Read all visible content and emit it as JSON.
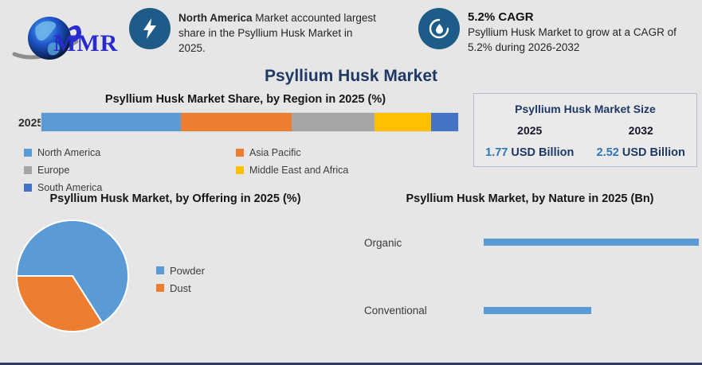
{
  "page": {
    "title": "Psyllium Husk Market",
    "background": "#E7E6E6",
    "accent_navy": "#1F3864",
    "accent_blue": "#2E75B6",
    "icon_circle_color": "#1D5C88"
  },
  "logo": {
    "text": "MMR",
    "icon": "globe-with-swoosh",
    "text_color": "#2A2BCF"
  },
  "highlights": [
    {
      "icon": "lightning-icon",
      "bold": "North America",
      "rest": "Market accounted largest share in the Psyllium Husk Market in 2025."
    },
    {
      "icon": "droplet-icon",
      "title": "5.2% CAGR",
      "text": "Psyllium Husk Market to grow at a CAGR of 5.2% during 2026-2032"
    }
  ],
  "market_size": {
    "title": "Psyllium Husk Market Size",
    "columns": [
      {
        "year": "2025",
        "value": "1.77",
        "unit": "USD Billion"
      },
      {
        "year": "2032",
        "value": "2.52",
        "unit": "USD Billion"
      }
    ]
  },
  "chart_data": [
    {
      "type": "bar",
      "subtype": "horizontal-stacked",
      "title": "Psyllium Husk Market Share, by Region in 2025 (%)",
      "year_label": "2025",
      "categories": [
        "North America",
        "Asia Pacific",
        "Europe",
        "Middle East and Africa",
        "South America"
      ],
      "values": [
        33.5,
        26.5,
        20,
        13.5,
        6.5
      ],
      "colors": [
        "#5B9BD5",
        "#ED7D31",
        "#A5A5A5",
        "#FFC000",
        "#4472C4"
      ],
      "unit": "%",
      "legend_position": "bottom",
      "grid": false
    },
    {
      "type": "pie",
      "title": "Psyllium Husk Market, by Offering in 2025 (%)",
      "categories": [
        "Powder",
        "Dust"
      ],
      "values": [
        66,
        34
      ],
      "colors": [
        "#5B9BD5",
        "#ED7D31"
      ],
      "unit": "%",
      "start_angle_deg": 270,
      "slice_border_color": "#FFFFFF",
      "legend_position": "right"
    },
    {
      "type": "bar",
      "subtype": "horizontal",
      "title": "Psyllium Husk Market, by Nature in 2025 (Bn)",
      "categories": [
        "Organic",
        "Conventional"
      ],
      "values": [
        1.18,
        0.59
      ],
      "color": "#5B9BD5",
      "unit": "USD Bn",
      "grid": false,
      "axis_labels_visible": false
    }
  ]
}
